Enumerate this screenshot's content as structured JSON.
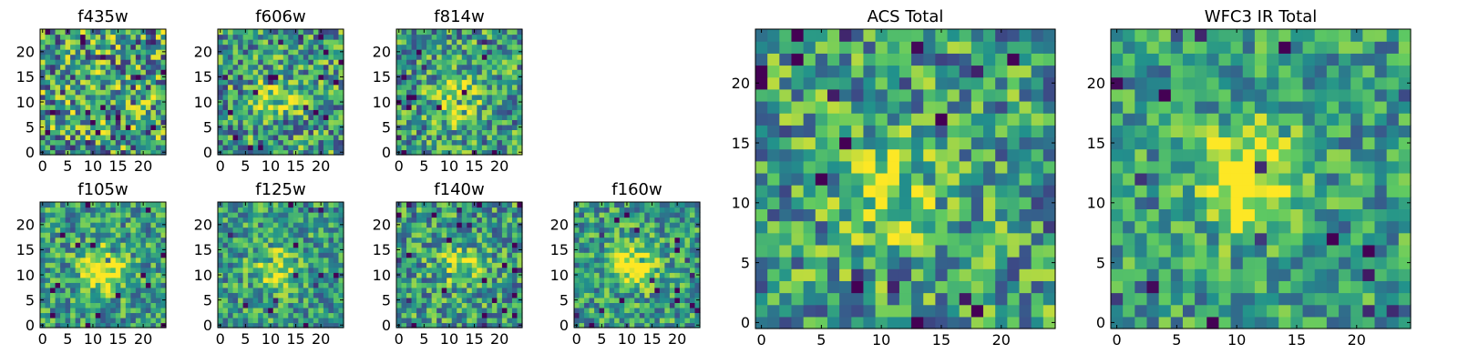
{
  "figure": {
    "colormap": [
      "#440154",
      "#3b528b",
      "#21918c",
      "#5ec962",
      "#fde725"
    ],
    "background": "#ffffff"
  },
  "chart_data": [
    {
      "type": "heatmap",
      "title": "f435w",
      "grid_size": 25,
      "xlim": [
        0,
        24
      ],
      "ylim": [
        0,
        24
      ],
      "x_ticks": [
        0,
        5,
        10,
        15,
        20
      ],
      "y_ticks": [
        0,
        5,
        10,
        15,
        20
      ],
      "x_ticklabels": [
        "0",
        "5",
        "10",
        "15",
        "20"
      ],
      "y_ticklabels": [
        "0",
        "5",
        "10",
        "15",
        "20"
      ],
      "source_center": [
        12,
        12
      ],
      "source_strength": 0.05,
      "noise": 0.9,
      "seed": 11
    },
    {
      "type": "heatmap",
      "title": "f606w",
      "grid_size": 25,
      "xlim": [
        0,
        24
      ],
      "ylim": [
        0,
        24
      ],
      "x_ticks": [
        0,
        5,
        10,
        15,
        20
      ],
      "y_ticks": [
        0,
        5,
        10,
        15,
        20
      ],
      "x_ticklabels": [
        "0",
        "5",
        "10",
        "15",
        "20"
      ],
      "y_ticklabels": [
        "0",
        "5",
        "10",
        "15",
        "20"
      ],
      "source_center": [
        11,
        11
      ],
      "source_strength": 0.3,
      "noise": 0.75,
      "seed": 23
    },
    {
      "type": "heatmap",
      "title": "f814w",
      "grid_size": 25,
      "xlim": [
        0,
        24
      ],
      "ylim": [
        0,
        24
      ],
      "x_ticks": [
        0,
        5,
        10,
        15,
        20
      ],
      "y_ticks": [
        0,
        5,
        10,
        15,
        20
      ],
      "x_ticklabels": [
        "0",
        "5",
        "10",
        "15",
        "20"
      ],
      "y_ticklabels": [
        "0",
        "5",
        "10",
        "15",
        "20"
      ],
      "source_center": [
        11,
        11
      ],
      "source_strength": 0.4,
      "noise": 0.7,
      "seed": 37
    },
    {
      "type": "heatmap",
      "title": "f105w",
      "grid_size": 25,
      "xlim": [
        0,
        24
      ],
      "ylim": [
        0,
        24
      ],
      "x_ticks": [
        0,
        5,
        10,
        15,
        20
      ],
      "y_ticks": [
        0,
        5,
        10,
        15,
        20
      ],
      "x_ticklabels": [
        "0",
        "5",
        "10",
        "15",
        "20"
      ],
      "y_ticklabels": [
        "0",
        "5",
        "10",
        "15",
        "20"
      ],
      "source_center": [
        12,
        11
      ],
      "source_strength": 0.55,
      "noise": 0.6,
      "seed": 41
    },
    {
      "type": "heatmap",
      "title": "f125w",
      "grid_size": 25,
      "xlim": [
        0,
        24
      ],
      "ylim": [
        0,
        24
      ],
      "x_ticks": [
        0,
        5,
        10,
        15,
        20
      ],
      "y_ticks": [
        0,
        5,
        10,
        15,
        20
      ],
      "x_ticklabels": [
        "0",
        "5",
        "10",
        "15",
        "20"
      ],
      "y_ticklabels": [
        "0",
        "5",
        "10",
        "15",
        "20"
      ],
      "source_center": [
        11,
        11
      ],
      "source_strength": 0.35,
      "noise": 0.6,
      "seed": 53
    },
    {
      "type": "heatmap",
      "title": "f140w",
      "grid_size": 25,
      "xlim": [
        0,
        24
      ],
      "ylim": [
        0,
        24
      ],
      "x_ticks": [
        0,
        5,
        10,
        15,
        20
      ],
      "y_ticks": [
        0,
        5,
        10,
        15,
        20
      ],
      "x_ticklabels": [
        "0",
        "5",
        "10",
        "15",
        "20"
      ],
      "y_ticklabels": [
        "0",
        "5",
        "10",
        "15",
        "20"
      ],
      "source_center": [
        12,
        12
      ],
      "source_strength": 0.3,
      "noise": 0.65,
      "seed": 67
    },
    {
      "type": "heatmap",
      "title": "f160w",
      "grid_size": 25,
      "xlim": [
        0,
        24
      ],
      "ylim": [
        0,
        24
      ],
      "x_ticks": [
        0,
        5,
        10,
        15,
        20
      ],
      "y_ticks": [
        0,
        5,
        10,
        15,
        20
      ],
      "x_ticklabels": [
        "0",
        "5",
        "10",
        "15",
        "20"
      ],
      "y_ticklabels": [
        "0",
        "5",
        "10",
        "15",
        "20"
      ],
      "source_center": [
        11,
        12
      ],
      "source_strength": 0.5,
      "noise": 0.6,
      "seed": 79
    },
    {
      "type": "heatmap",
      "title": "ACS Total",
      "grid_size": 25,
      "xlim": [
        0,
        24
      ],
      "ylim": [
        0,
        24
      ],
      "x_ticks": [
        0,
        5,
        10,
        15,
        20
      ],
      "y_ticks": [
        0,
        5,
        10,
        15,
        20
      ],
      "x_ticklabels": [
        "0",
        "5",
        "10",
        "15",
        "20"
      ],
      "y_ticklabels": [
        "0",
        "5",
        "10",
        "15",
        "20"
      ],
      "source_center": [
        11,
        11
      ],
      "source_strength": 0.3,
      "noise": 0.7,
      "seed": 97
    },
    {
      "type": "heatmap",
      "title": "WFC3 IR Total",
      "grid_size": 25,
      "xlim": [
        0,
        24
      ],
      "ylim": [
        0,
        24
      ],
      "x_ticks": [
        0,
        5,
        10,
        15,
        20
      ],
      "y_ticks": [
        0,
        5,
        10,
        15,
        20
      ],
      "x_ticklabels": [
        "0",
        "5",
        "10",
        "15",
        "20"
      ],
      "y_ticklabels": [
        "0",
        "5",
        "10",
        "15",
        "20"
      ],
      "source_center": [
        11,
        12
      ],
      "source_strength": 0.55,
      "noise": 0.55,
      "seed": 113
    }
  ]
}
